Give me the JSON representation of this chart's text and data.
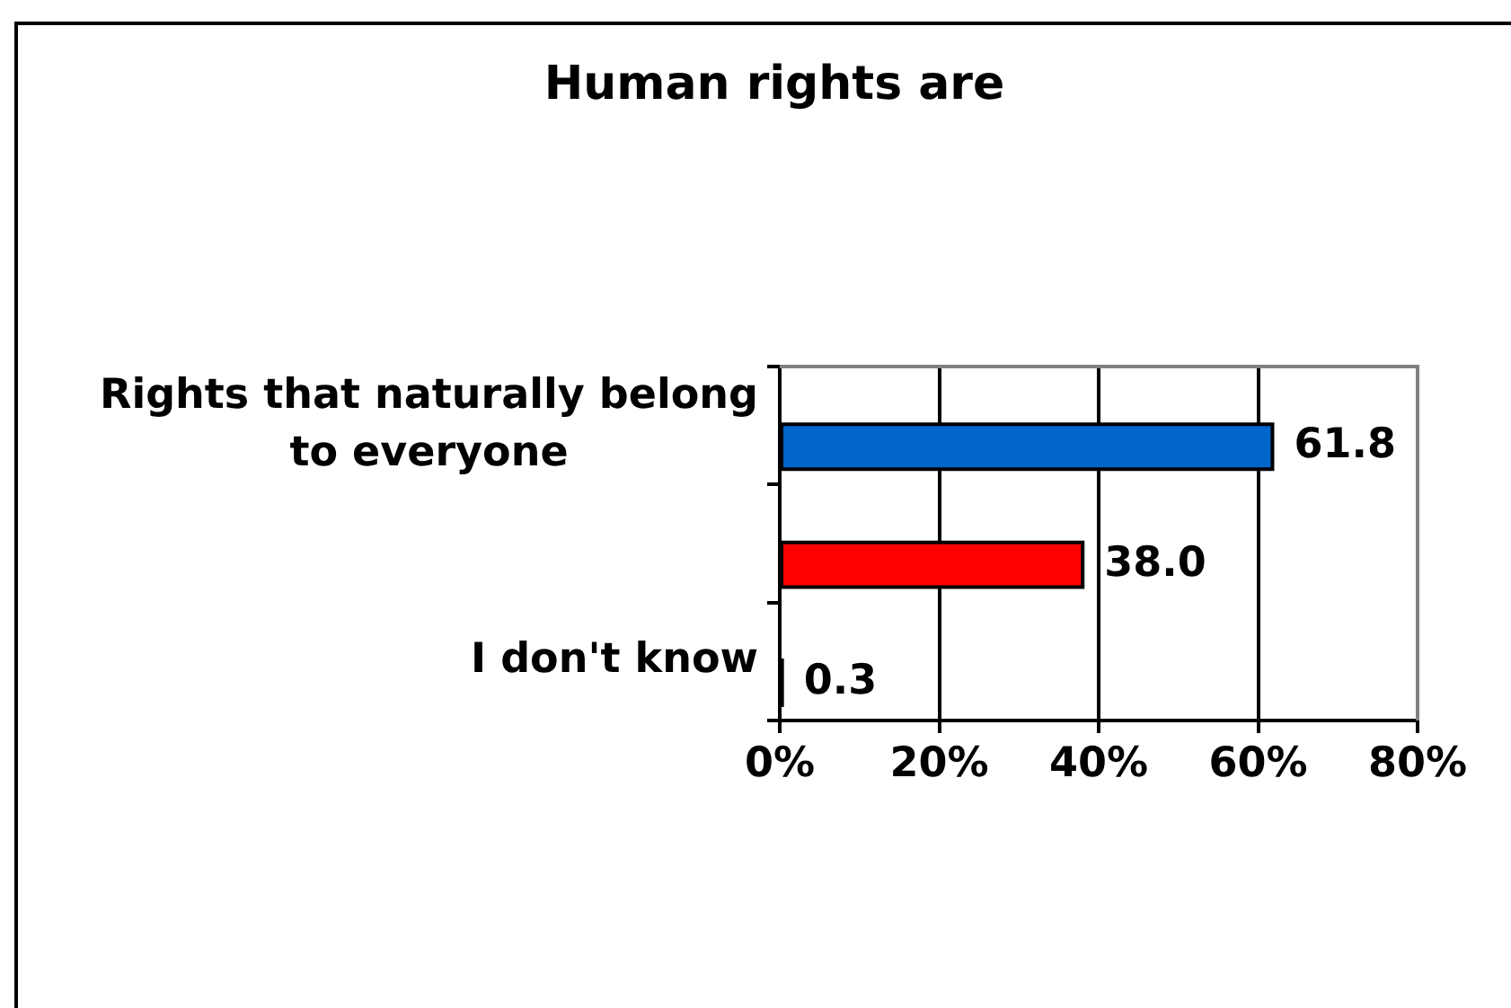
{
  "chart_data": {
    "type": "bar",
    "orientation": "horizontal",
    "title": "Human rights are",
    "categories": [
      "Rights that naturally belong to everyone",
      null,
      "I don't know"
    ],
    "values": [
      61.8,
      38.0,
      0.3
    ],
    "colors": [
      "#0066cc",
      "#ff0000",
      "#000000"
    ],
    "value_labels": [
      "61.8",
      "38.0",
      "0.3"
    ],
    "xlim": [
      0,
      80
    ],
    "xticks": [
      {
        "value": 0,
        "label": "0%"
      },
      {
        "value": 20,
        "label": "20%"
      },
      {
        "value": 40,
        "label": "40%"
      },
      {
        "value": 60,
        "label": "60%"
      },
      {
        "value": 80,
        "label": "80%"
      }
    ],
    "grid": "x"
  }
}
